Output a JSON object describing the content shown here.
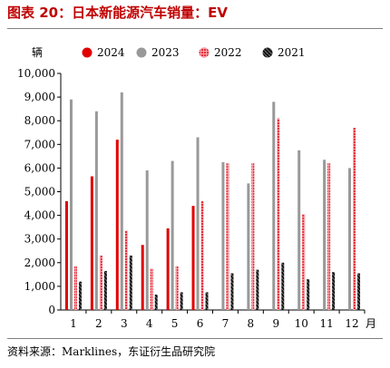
{
  "header": {
    "title": "图表 20：日本新能源汽车销量：EV"
  },
  "footer": {
    "source": "资料来源：Marklines，东证衍生品研究院"
  },
  "chart_data": {
    "type": "bar",
    "title": "图表 20：日本新能源汽车销量：EV",
    "ylabel": "辆",
    "xlabel": "月",
    "categories": [
      "1",
      "2",
      "3",
      "4",
      "5",
      "6",
      "7",
      "8",
      "9",
      "10",
      "11",
      "12"
    ],
    "ylim": [
      0,
      10000
    ],
    "yticks": [
      "0",
      "1,000",
      "2,000",
      "3,000",
      "4,000",
      "5,000",
      "6,000",
      "7,000",
      "8,000",
      "9,000",
      "10,000"
    ],
    "legend_position": "top",
    "series": [
      {
        "name": "2024",
        "color": "#e00000",
        "pattern": "solid",
        "values": [
          4600,
          5650,
          7200,
          2750,
          3450,
          4400,
          null,
          null,
          null,
          null,
          null,
          null
        ]
      },
      {
        "name": "2023",
        "color": "#999999",
        "pattern": "solid",
        "values": [
          8900,
          8400,
          9200,
          5900,
          6300,
          7300,
          6250,
          5350,
          8800,
          6750,
          6350,
          6000
        ]
      },
      {
        "name": "2022",
        "color": "#f0505a",
        "pattern": "dotted",
        "values": [
          1850,
          2300,
          3350,
          1750,
          1850,
          4600,
          6200,
          6200,
          8100,
          4050,
          6200,
          7700
        ]
      },
      {
        "name": "2021",
        "color": "#111111",
        "pattern": "hatched",
        "values": [
          1200,
          1650,
          2300,
          650,
          750,
          750,
          1550,
          1700,
          2000,
          1300,
          1600,
          1550
        ]
      }
    ]
  }
}
